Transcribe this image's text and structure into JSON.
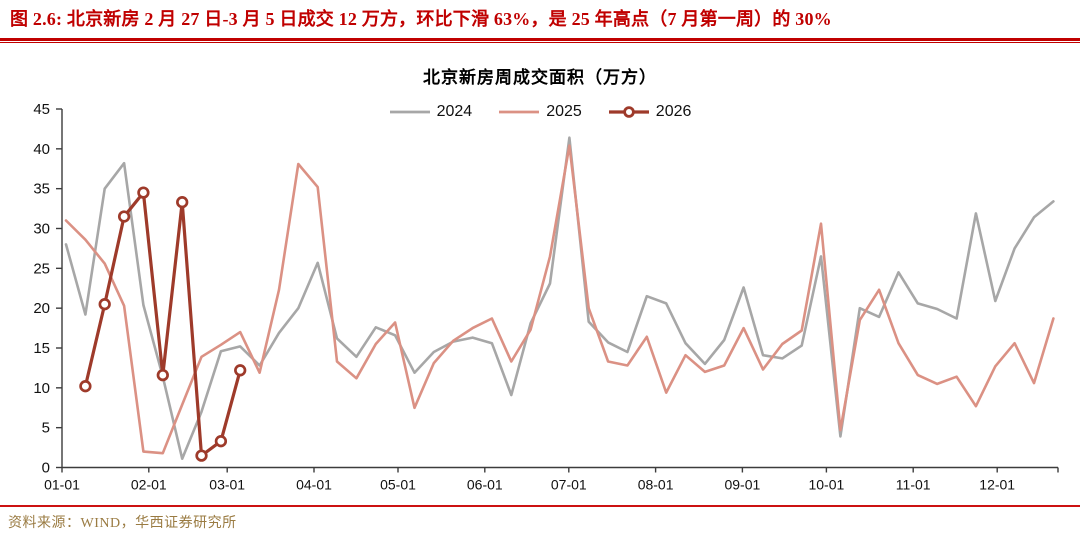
{
  "header": {
    "title": "图 2.6: 北京新房 2 月 27 日-3 月 5 日成交 12 万方，环比下滑 63%，是 25 年高点（7 月第一周）的 30%",
    "accent_color": "#c00000"
  },
  "chart": {
    "title": "北京新房周成交面积（万方）"
  },
  "chart_data": {
    "type": "line",
    "title": "北京新房周成交面积（万方）",
    "xlabel": "",
    "ylabel": "",
    "x_unit": "week-of-year",
    "grid": false,
    "legend_position": "top-center",
    "y_axis": {
      "min": 0,
      "max": 45,
      "step": 5,
      "ticks": [
        0,
        5,
        10,
        15,
        20,
        25,
        30,
        35,
        40,
        45
      ]
    },
    "x_axis": {
      "tick_labels": [
        "01-01",
        "02-01",
        "03-01",
        "04-01",
        "05-01",
        "06-01",
        "07-01",
        "08-01",
        "09-01",
        "10-01",
        "11-01",
        "12-01"
      ],
      "month_cum_days": [
        0,
        31,
        59,
        90,
        120,
        151,
        181,
        212,
        243,
        273,
        304,
        334
      ]
    },
    "axis_color": "#3c3c3c",
    "series": [
      {
        "name": "2024",
        "color": "#a7a7a7",
        "line_width": 2.6,
        "marker": "none",
        "start_week": 1,
        "values": [
          28,
          19.2,
          35,
          38.2,
          20.4,
          11.4,
          1.1,
          7,
          14.6,
          15.2,
          12.8,
          16.9,
          20,
          25.7,
          16.2,
          13.9,
          17.6,
          16.6,
          11.9,
          14.5,
          15.8,
          16.3,
          15.6,
          9.1,
          18.1,
          23.1,
          41.4,
          18.3,
          15.7,
          14.5,
          21.5,
          20.6,
          15.6,
          13,
          16,
          22.6,
          14.1,
          13.7,
          15.3,
          26.5,
          3.9,
          20,
          18.9,
          24.5,
          20.6,
          19.9,
          18.7,
          31.9,
          20.9,
          27.5,
          31.4,
          33.4
        ]
      },
      {
        "name": "2025",
        "color": "#db9184",
        "line_width": 2.6,
        "marker": "none",
        "start_week": 1,
        "values": [
          31,
          28.6,
          25.6,
          20.3,
          2,
          1.8,
          7.9,
          13.9,
          15.4,
          17,
          11.9,
          22.3,
          38.1,
          35.2,
          13.3,
          11.2,
          15.5,
          18.2,
          7.5,
          13.1,
          15.9,
          17.5,
          18.7,
          13.3,
          17.3,
          26.5,
          40.4,
          20,
          13.3,
          12.8,
          16.4,
          9.4,
          14.1,
          12,
          12.8,
          17.5,
          12.3,
          15.5,
          17.2,
          30.6,
          4.7,
          18.5,
          22.3,
          15.6,
          11.6,
          10.5,
          11.4,
          7.7,
          12.7,
          15.6,
          10.6,
          18.7
        ]
      },
      {
        "name": "2026",
        "color": "#9e3a2a",
        "line_width": 3.2,
        "marker": "circle",
        "start_week": 2,
        "values": [
          10.2,
          20.5,
          31.5,
          34.5,
          11.6,
          33.3,
          1.5,
          3.3,
          12.2
        ]
      }
    ]
  },
  "footer": {
    "source": "资料来源：WIND，华西证券研究所",
    "source_color": "#9a7b42",
    "rule_color": "#cc1111"
  }
}
